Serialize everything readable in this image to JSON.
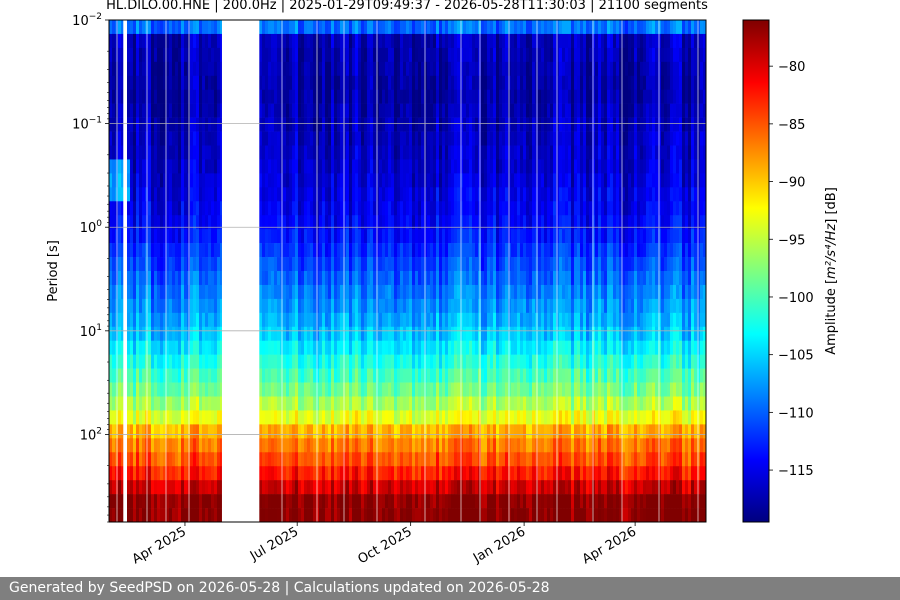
{
  "chart_data": {
    "type": "heatmap",
    "title": "HL.DILO.00.HNE | 200.0Hz | 2025-01-29T09:49:37 - 2026-05-28T11:30:03 | 21100 segments",
    "x_range": [
      "2025-01-29",
      "2026-05-28"
    ],
    "x_ticks": [
      {
        "date": "2025-04-01",
        "label": "Apr 2025"
      },
      {
        "date": "2025-07-01",
        "label": "Jul 2025"
      },
      {
        "date": "2025-10-01",
        "label": "Oct 2025"
      },
      {
        "date": "2026-01-01",
        "label": "Jan 2026"
      },
      {
        "date": "2026-04-01",
        "label": "Apr 2026"
      }
    ],
    "y_axis": {
      "label": "Period [s]",
      "scale": "log",
      "inverted": true,
      "range": [
        0.01,
        700
      ],
      "ticks": [
        {
          "value": 0.01,
          "base": "10",
          "exp": "−2"
        },
        {
          "value": 0.1,
          "base": "10",
          "exp": "−1"
        },
        {
          "value": 1,
          "base": "10",
          "exp": "0"
        },
        {
          "value": 10,
          "base": "10",
          "exp": "1"
        },
        {
          "value": 100,
          "base": "10",
          "exp": "2"
        }
      ],
      "grid": true
    },
    "colorbar": {
      "label_prefix": "Amplitude [",
      "label_math": "m²/s⁴/Hz",
      "label_suffix": "] [dB]",
      "range": [
        -119.5,
        -76
      ],
      "ticks": [
        -80,
        -85,
        -90,
        -95,
        -100,
        -105,
        -110,
        -115
      ],
      "colormap": "jet"
    },
    "data_gaps": [
      {
        "start": "2025-02-10",
        "end": "2025-02-12"
      },
      {
        "start": "2025-05-01",
        "end": "2025-05-31"
      }
    ],
    "amplitude_profile": [
      {
        "period": 0.01,
        "db": -107
      },
      {
        "period": 0.013,
        "db": -111
      },
      {
        "period": 0.015,
        "db": -117
      },
      {
        "period": 0.05,
        "db": -118
      },
      {
        "period": 0.3,
        "db": -116
      },
      {
        "period": 1,
        "db": -114
      },
      {
        "period": 3,
        "db": -110
      },
      {
        "period": 10,
        "db": -106
      },
      {
        "period": 20,
        "db": -102
      },
      {
        "period": 40,
        "db": -98
      },
      {
        "period": 70,
        "db": -93
      },
      {
        "period": 100,
        "db": -88
      },
      {
        "period": 200,
        "db": -84
      },
      {
        "period": 300,
        "db": -80
      },
      {
        "period": 450,
        "db": -76
      },
      {
        "period": 700,
        "db": -76
      }
    ]
  },
  "footer": {
    "text": "Generated by SeedPSD on 2026-05-28 | Calculations updated on 2026-05-28"
  }
}
